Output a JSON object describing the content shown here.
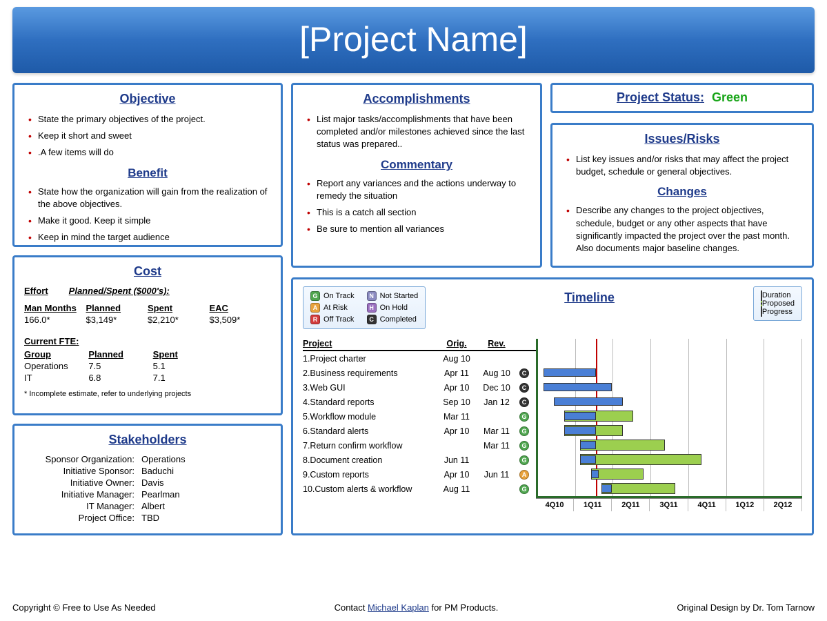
{
  "colors": {
    "panel_border": "#3a7cc8",
    "heading": "#1e3a8a",
    "bullet": "#c00000",
    "title_grad_top": "#5a9ae0",
    "title_grad_mid": "#2f6fc0",
    "title_grad_bot": "#1e5aa8",
    "status_green": "#19a519",
    "gantt_axis": "#2a6b2a",
    "today_line": "#c00000",
    "bar_duration": "#9ccf4f",
    "bar_progress": "#4a7fd6",
    "grid_line": "#bbbbbb",
    "legend_bg_top": "#f4f9ff",
    "legend_bg_bot": "#e6f0fb",
    "legend_border": "#7aa8d8"
  },
  "header": {
    "title": "[Project Name]"
  },
  "objective": {
    "title": "Objective",
    "items": [
      "State the primary objectives of the project.",
      "Keep it short and sweet",
      ".A few items will do"
    ],
    "benefit_title": "Benefit",
    "benefit_items": [
      "State how the organization will gain from the realization of the above objectives.",
      "Make it good. Keep it simple",
      "Keep in mind the target audience"
    ]
  },
  "accomplishments": {
    "title": "Accomplishments",
    "items": [
      "List major tasks/accomplishments that have been completed and/or milestones achieved since the last status was prepared.."
    ],
    "commentary_title": "Commentary",
    "commentary_items": [
      "Report any variances and the actions underway to remedy the situation",
      "This is a catch all section",
      "Be sure to mention all variances"
    ]
  },
  "status": {
    "label": "Project Status:",
    "value": "Green",
    "value_color": "#19a519"
  },
  "issues": {
    "title": "Issues/Risks",
    "items": [
      "List key issues and/or risks that may affect the project budget, schedule or general objectives."
    ],
    "changes_title": "Changes",
    "changes_items": [
      "Describe any changes to the project objectives, schedule, budget or any other aspects that have significantly impacted the project over the past month. Also documents major baseline changes."
    ]
  },
  "cost": {
    "title": "Cost",
    "effort_label": "Effort",
    "planned_spent_label": "Planned/Spent ($000's):",
    "table1": {
      "headers": [
        "Man Months",
        "Planned",
        "Spent",
        "EAC"
      ],
      "row": [
        "166.0*",
        "$3,149*",
        "$2,210*",
        "$3,509*"
      ]
    },
    "fte_label": "Current FTE:",
    "table2": {
      "headers": [
        "Group",
        "Planned",
        "Spent"
      ],
      "rows": [
        [
          "Operations",
          "7.5",
          "5.1"
        ],
        [
          "IT",
          "6.8",
          "7.1"
        ]
      ]
    },
    "note": "* Incomplete estimate, refer to underlying projects"
  },
  "stakeholders": {
    "title": "Stakeholders",
    "rows": [
      [
        "Sponsor Organization:",
        "Operations"
      ],
      [
        "Initiative Sponsor:",
        "Baduchi"
      ],
      [
        "Initiative Owner:",
        "Davis"
      ],
      [
        "Initiative Manager:",
        "Pearlman"
      ],
      [
        "IT Manager:",
        "Albert"
      ],
      [
        "Project Office:",
        "TBD"
      ]
    ]
  },
  "timeline": {
    "title": "Timeline",
    "status_legend": [
      {
        "code": "G",
        "label": "On Track",
        "color": "#4fa64f"
      },
      {
        "code": "A",
        "label": "At Risk",
        "color": "#e8a23c"
      },
      {
        "code": "R",
        "label": "Off Track",
        "color": "#d33c3c"
      },
      {
        "code": "N",
        "label": "Not Started",
        "color": "#8a8ac0"
      },
      {
        "code": "H",
        "label": "On Hold",
        "color": "#9a6fbf"
      },
      {
        "code": "C",
        "label": "Completed",
        "color": "#333333"
      }
    ],
    "bar_legend": [
      {
        "label": "Duration",
        "fill": "#9ccf4f",
        "border": "solid"
      },
      {
        "label": "Proposed",
        "fill": "#9ccf4f",
        "border": "dashed"
      },
      {
        "label": "Progress",
        "fill": "#4a7fd6",
        "border": "solid"
      }
    ],
    "columns": [
      "Project",
      "Orig.",
      "Rev."
    ],
    "quarters": [
      "4Q10",
      "1Q11",
      "2Q11",
      "3Q11",
      "4Q11",
      "1Q12",
      "2Q12"
    ],
    "today_pct": 22,
    "tasks": [
      {
        "n": 1,
        "name": "Project charter",
        "orig": "Aug 10",
        "rev": "",
        "status": "",
        "bars": []
      },
      {
        "n": 2,
        "name": "Business requirements",
        "orig": "Apr 11",
        "rev": "Aug 10",
        "status": "C",
        "bars": [
          {
            "type": "prog",
            "start": 2,
            "end": 22
          }
        ]
      },
      {
        "n": 3,
        "name": "Web GUI",
        "orig": "Apr 10",
        "rev": "Dec 10",
        "status": "C",
        "bars": [
          {
            "type": "prog",
            "start": 2,
            "end": 28
          }
        ]
      },
      {
        "n": 4,
        "name": "Standard reports",
        "orig": "Sep 10",
        "rev": "Jan 12",
        "status": "C",
        "bars": [
          {
            "type": "prog",
            "start": 6,
            "end": 32
          }
        ]
      },
      {
        "n": 5,
        "name": "Workflow module",
        "orig": "Mar 11",
        "rev": "",
        "status": "G",
        "bars": [
          {
            "type": "dur",
            "start": 10,
            "end": 36
          },
          {
            "type": "prog",
            "start": 10,
            "end": 22
          }
        ]
      },
      {
        "n": 6,
        "name": "Standard alerts",
        "orig": "Apr 10",
        "rev": "Mar 11",
        "status": "G",
        "bars": [
          {
            "type": "dur",
            "start": 10,
            "end": 32
          },
          {
            "type": "prog",
            "start": 10,
            "end": 22
          }
        ]
      },
      {
        "n": 7,
        "name": "Return confirm workflow",
        "orig": "",
        "rev": "Mar 11",
        "status": "G",
        "bars": [
          {
            "type": "dur",
            "start": 16,
            "end": 48
          },
          {
            "type": "prog",
            "start": 16,
            "end": 22
          }
        ]
      },
      {
        "n": 8,
        "name": "Document creation",
        "orig": "Jun 11",
        "rev": "",
        "status": "G",
        "bars": [
          {
            "type": "dur",
            "start": 16,
            "end": 62
          },
          {
            "type": "prog",
            "start": 16,
            "end": 22
          }
        ]
      },
      {
        "n": 9,
        "name": "Custom reports",
        "orig": "Apr 10",
        "rev": "Jun 11",
        "status": "A",
        "bars": [
          {
            "type": "dur",
            "start": 20,
            "end": 40
          },
          {
            "type": "prog",
            "start": 20,
            "end": 23
          }
        ]
      },
      {
        "n": 10,
        "name": "Custom alerts & workflow",
        "orig": "Aug 11",
        "rev": "",
        "status": "G",
        "bars": [
          {
            "type": "dur",
            "start": 24,
            "end": 52
          },
          {
            "type": "prog",
            "start": 24,
            "end": 28
          }
        ]
      }
    ]
  },
  "footer": {
    "left": "Copyright © Free to Use As Needed",
    "center_pre": "Contact ",
    "center_link": "Michael Kaplan",
    "center_post": " for PM Products.",
    "right": "Original Design by Dr. Tom Tarnow"
  }
}
